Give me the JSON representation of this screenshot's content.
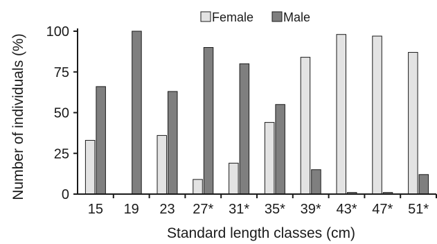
{
  "chart_data": {
    "type": "bar",
    "categories": [
      "15",
      "19",
      "23",
      "27*",
      "31*",
      "35*",
      "39*",
      "43*",
      "47*",
      "51*"
    ],
    "series": [
      {
        "name": "Female",
        "values": [
          33,
          0,
          36,
          9,
          19,
          44,
          84,
          98,
          97,
          87
        ],
        "color": "#e3e3e3"
      },
      {
        "name": "Male",
        "values": [
          66,
          100,
          63,
          90,
          80,
          55,
          15,
          1,
          1,
          12
        ],
        "color": "#7f7f7f"
      }
    ],
    "title": "",
    "xlabel": "Standard length classes (cm)",
    "ylabel": "Number of individuals (%)",
    "ylim": [
      0,
      100
    ],
    "yticks": [
      0,
      25,
      50,
      75,
      100
    ],
    "grid": false,
    "legend_position": "top-center"
  }
}
